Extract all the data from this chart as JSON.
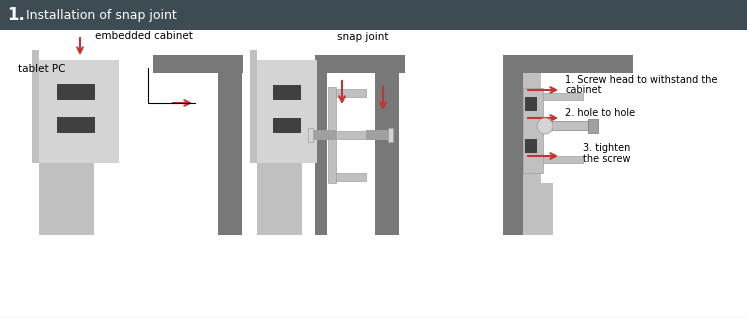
{
  "title_num": "1.",
  "title_text": " Installation of snap joint",
  "title_bg": "#3d4b53",
  "title_text_color": "#ffffff",
  "bg_color": "#f0f0f0",
  "white_panel": "#ffffff",
  "gray_dark": "#787878",
  "gray_mid": "#a0a0a0",
  "gray_light": "#c0c0c0",
  "gray_lighter": "#d4d4d4",
  "red": "#c83232",
  "black_rect": "#404040",
  "border_color": "#c8c8c8",
  "label_tablet": "tablet PC",
  "label_embedded": "embedded cabinet",
  "label_snap": "snap joint",
  "label_1a": "1. Screw head to withstand the",
  "label_1b": "cabinet",
  "label_2": "2. hole to hole",
  "label_3a": "3. tighten",
  "label_3b": "the screw"
}
